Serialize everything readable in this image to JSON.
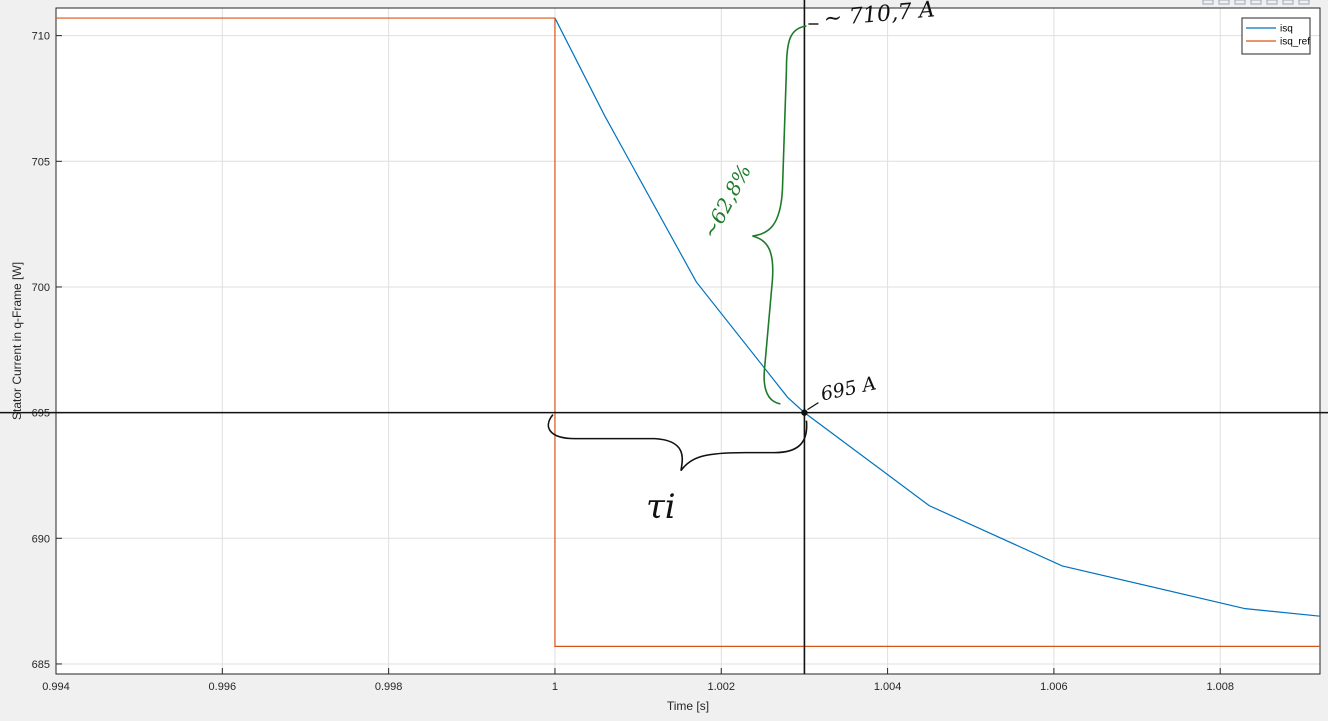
{
  "chart_data": {
    "type": "line",
    "title": "",
    "xlabel": "Time [s]",
    "ylabel": "Stator Current in q-Frame [W]",
    "xlim": [
      0.994,
      1.0092
    ],
    "ylim": [
      684.6,
      711.1
    ],
    "grid": true,
    "legend_position": "top-right",
    "x_ticks": [
      0.994,
      0.996,
      0.998,
      1.0,
      1.002,
      1.004,
      1.006,
      1.008
    ],
    "x_tick_labels": [
      "0.994",
      "0.996",
      "0.998",
      "1",
      "1.002",
      "1.004",
      "1.006",
      "1.008"
    ],
    "y_ticks": [
      685,
      690,
      695,
      700,
      705,
      710
    ],
    "y_tick_labels": [
      "685",
      "690",
      "695",
      "700",
      "705",
      "710"
    ],
    "series": [
      {
        "name": "isq",
        "color": "#0072BD",
        "x": [
          1.0,
          1.0006,
          1.0017,
          1.0028,
          1.003,
          1.0045,
          1.0061,
          1.0083,
          1.0092
        ],
        "y": [
          710.7,
          706.8,
          700.2,
          695.6,
          695.0,
          691.3,
          688.9,
          687.2,
          686.9
        ]
      },
      {
        "name": "isq_ref",
        "color": "#D95319",
        "x": [
          0.994,
          1.0,
          1.0,
          1.0092
        ],
        "y": [
          710.7,
          710.7,
          685.7,
          685.7
        ]
      }
    ],
    "legend_entries": [
      {
        "name": "isq",
        "color": "#0072BD"
      },
      {
        "name": "isq_ref",
        "color": "#D95319"
      }
    ],
    "annotations": {
      "vertical_line_x": 1.003,
      "horizontal_line_y": 695.0,
      "marker": {
        "x": 1.003,
        "y": 695.0
      },
      "label_top": "~ 710,7 A",
      "label_point": "695 A",
      "label_percent": "~62,8%",
      "label_tau": "τi"
    }
  }
}
